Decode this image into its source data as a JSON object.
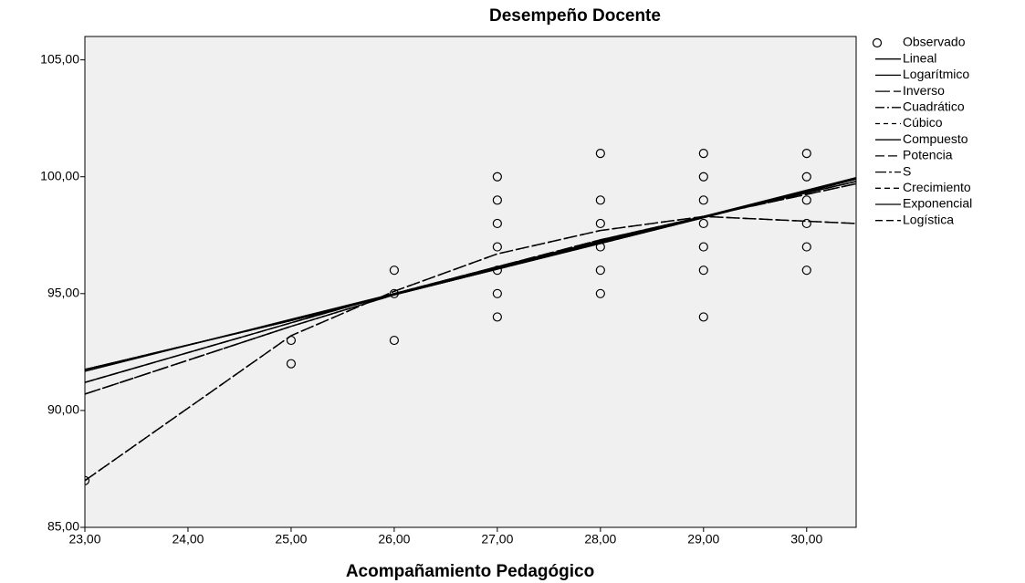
{
  "chart_data": {
    "type": "scatter",
    "title": "Desempeño Docente",
    "xlabel": "Acompañamiento Pedagógico",
    "xlim": [
      23,
      30.48
    ],
    "ylim": [
      85,
      106
    ],
    "xticks": [
      {
        "value": 23,
        "label": "23,00"
      },
      {
        "value": 24,
        "label": "24,00"
      },
      {
        "value": 25,
        "label": "25,00"
      },
      {
        "value": 26,
        "label": "26,00"
      },
      {
        "value": 27,
        "label": "27,00"
      },
      {
        "value": 28,
        "label": "28,00"
      },
      {
        "value": 29,
        "label": "29,00"
      },
      {
        "value": 30,
        "label": "30,00"
      }
    ],
    "yticks": [
      {
        "value": 85,
        "label": "85,00"
      },
      {
        "value": 90,
        "label": "90,00"
      },
      {
        "value": 95,
        "label": "95,00"
      },
      {
        "value": 100,
        "label": "100,00"
      },
      {
        "value": 105,
        "label": "105,00"
      }
    ],
    "series": [
      {
        "name": "Observado",
        "color": "#000000",
        "marker": "circle",
        "x": [
          23,
          25,
          25,
          26,
          26,
          26,
          27,
          27,
          27,
          27,
          27,
          27,
          27,
          28,
          28,
          28,
          28,
          28,
          28,
          29,
          29,
          29,
          29,
          29,
          29,
          29,
          30,
          30,
          30,
          30,
          30,
          30
        ],
        "values": [
          87,
          93,
          92,
          96,
          95,
          93,
          100,
          99,
          98,
          97,
          96,
          95,
          94,
          101,
          99,
          98,
          97,
          96,
          95,
          101,
          100,
          99,
          98,
          97,
          96,
          94,
          101,
          100,
          99,
          98,
          97,
          96
        ]
      },
      {
        "name": "Lineal",
        "color": "#000000",
        "dash": "none",
        "x": [
          23,
          25,
          26,
          27,
          28,
          29,
          30.48
        ],
        "values": [
          91.68,
          93.9,
          95.0,
          96.1,
          97.2,
          98.3,
          99.96
        ]
      },
      {
        "name": "Logarítmico",
        "color": "#000000",
        "dash": "none",
        "x": [
          23,
          25,
          26,
          27,
          28,
          29,
          30.48
        ],
        "values": [
          91.2,
          93.75,
          95.0,
          96.15,
          97.25,
          98.3,
          99.8
        ]
      },
      {
        "name": "Inverso",
        "color": "#000000",
        "dash": "16 4",
        "x": [
          23,
          25,
          26,
          27,
          28,
          29,
          30.48
        ],
        "values": [
          90.7,
          93.6,
          94.95,
          96.15,
          97.3,
          98.3,
          99.7
        ]
      },
      {
        "name": "Cuadrático",
        "color": "#000000",
        "dash": "10 3 2 3",
        "x": [
          23,
          25,
          26,
          27,
          28,
          29,
          30.48
        ],
        "values": [
          87.0,
          93.2,
          95.1,
          96.7,
          97.7,
          98.3,
          98.0
        ]
      },
      {
        "name": "Cúbico",
        "color": "#000000",
        "dash": "5 4",
        "x": [
          23,
          25,
          26,
          27,
          28,
          29,
          30.48
        ],
        "values": [
          87.0,
          93.2,
          95.1,
          96.7,
          97.7,
          98.3,
          98.0
        ]
      },
      {
        "name": "Compuesto",
        "color": "#000000",
        "dash": "none",
        "x": [
          23,
          25,
          26,
          27,
          28,
          29,
          30.48
        ],
        "values": [
          91.75,
          93.85,
          94.95,
          96.05,
          97.15,
          98.25,
          99.9
        ]
      },
      {
        "name": "Potencia",
        "color": "#000000",
        "dash": "10 4",
        "x": [
          23,
          25,
          26,
          27,
          28,
          29,
          30.48
        ],
        "values": [
          91.2,
          93.75,
          95.0,
          96.15,
          97.25,
          98.3,
          99.8
        ]
      },
      {
        "name": "S",
        "color": "#000000",
        "dash": "12 3 3 3",
        "x": [
          23,
          25,
          26,
          27,
          28,
          29,
          30.48
        ],
        "values": [
          90.7,
          93.6,
          94.95,
          96.15,
          97.3,
          98.3,
          99.7
        ]
      },
      {
        "name": "Crecimiento",
        "color": "#000000",
        "dash": "6 4",
        "x": [
          23,
          25,
          26,
          27,
          28,
          29,
          30.48
        ],
        "values": [
          91.75,
          93.85,
          94.95,
          96.05,
          97.15,
          98.25,
          99.9
        ]
      },
      {
        "name": "Exponencial",
        "color": "#000000",
        "dash": "none",
        "x": [
          23,
          25,
          26,
          27,
          28,
          29,
          30.48
        ],
        "values": [
          91.75,
          93.85,
          94.95,
          96.05,
          97.15,
          98.25,
          99.9
        ]
      },
      {
        "name": "Logística",
        "color": "#000000",
        "dash": "8 4",
        "x": [
          23,
          25,
          26,
          27,
          28,
          29,
          30.48
        ],
        "values": [
          91.75,
          93.85,
          94.95,
          96.05,
          97.15,
          98.25,
          99.9
        ]
      }
    ]
  }
}
